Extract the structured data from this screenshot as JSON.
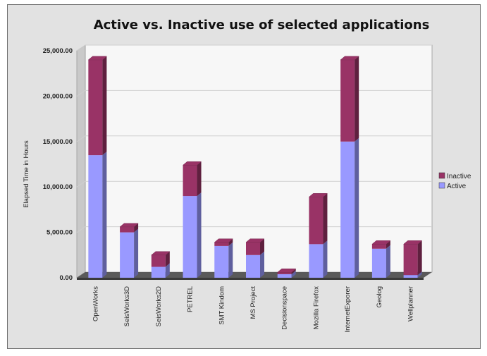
{
  "chart_data": {
    "type": "bar",
    "stacked": true,
    "title": "Active vs. Inactive use of selected applications",
    "ylabel": "Elapsed Time in Hours",
    "xlabel": "",
    "ylim": [
      0,
      25000
    ],
    "yticks": [
      "0.00",
      "5,000.00",
      "10,000.00",
      "15,000.00",
      "20,000.00",
      "25,000.00"
    ],
    "grid": true,
    "legend_position": "right",
    "categories": [
      "OpenWorks",
      "SeisWorks3D",
      "SeisWorks2D",
      "PETREL",
      "SMT Kindom",
      "MS Project",
      "Decisionspace",
      "Mozilla Firefox",
      "InternetExporer",
      "Geolog",
      "Wellplanner"
    ],
    "series": [
      {
        "name": "Active",
        "color": "#9999ff",
        "values": [
          13500,
          5000,
          1200,
          9000,
          3500,
          2500,
          400,
          3700,
          15000,
          3200,
          300
        ]
      },
      {
        "name": "Inactive",
        "color": "#993366",
        "values": [
          10500,
          600,
          1300,
          3400,
          400,
          1400,
          200,
          5200,
          9000,
          500,
          3400
        ]
      }
    ],
    "legend_order": [
      "Inactive",
      "Active"
    ]
  }
}
